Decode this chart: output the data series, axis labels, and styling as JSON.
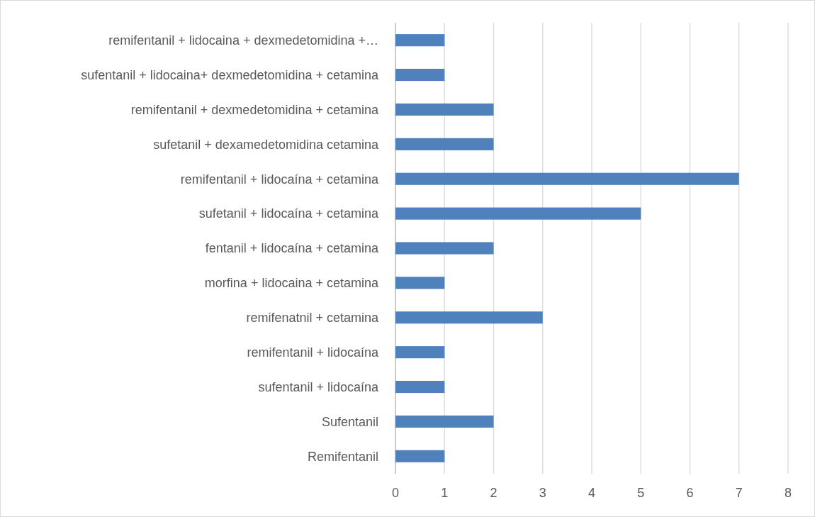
{
  "chart_data": {
    "type": "bar",
    "orientation": "horizontal",
    "categories": [
      "remifentanil + lidocaina + dexmedetomidina +…",
      "sufentanil + lidocaina+ dexmedetomidina + cetamina",
      "remifentanil + dexmedetomidina + cetamina",
      "sufetanil + dexamedetomidina cetamina",
      "remifentanil + lidocaína + cetamina",
      "sufetanil + lidocaína + cetamina",
      "fentanil + lidocaína + cetamina",
      "morfina + lidocaina + cetamina",
      "remifenatnil + cetamina",
      "remifentanil + lidocaína",
      "sufentanil + lidocaína",
      "Sufentanil",
      "Remifentanil"
    ],
    "values": [
      1,
      1,
      2,
      2,
      7,
      5,
      2,
      1,
      3,
      1,
      1,
      2,
      1
    ],
    "color": "#4f81bd",
    "xlim": [
      0,
      8
    ],
    "xticks": [
      0,
      1,
      2,
      3,
      4,
      5,
      6,
      7,
      8
    ],
    "grid": "x"
  }
}
